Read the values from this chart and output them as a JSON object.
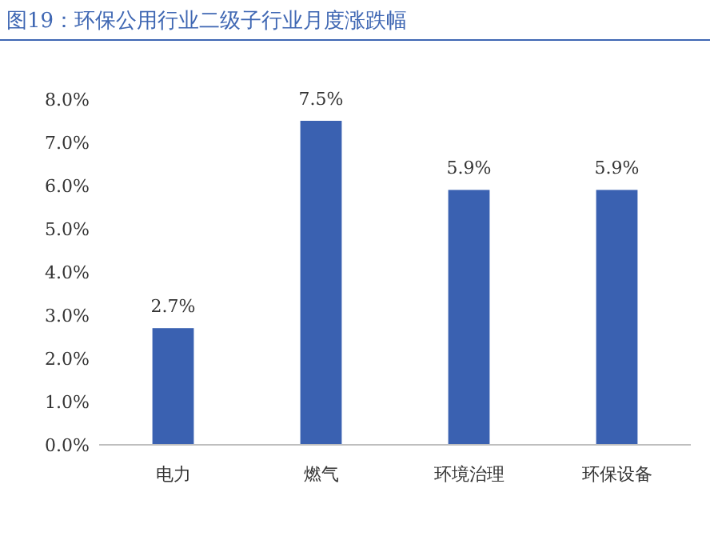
{
  "chart_data": {
    "type": "bar",
    "title": "图19：环保公用行业二级子行业月度涨跌幅",
    "categories": [
      "电力",
      "燃气",
      "环境治理",
      "环保设备"
    ],
    "values": [
      2.7,
      7.5,
      5.9,
      5.9
    ],
    "value_labels": [
      "2.7%",
      "7.5%",
      "5.9%",
      "5.9%"
    ],
    "color": "#3a61b1",
    "ylim": [
      0,
      8
    ],
    "yticks": [
      {
        "value": 0,
        "label": "0.0%"
      },
      {
        "value": 1,
        "label": "1.0%"
      },
      {
        "value": 2,
        "label": "2.0%"
      },
      {
        "value": 3,
        "label": "3.0%"
      },
      {
        "value": 4,
        "label": "4.0%"
      },
      {
        "value": 5,
        "label": "5.0%"
      },
      {
        "value": 6,
        "label": "6.0%"
      },
      {
        "value": 7,
        "label": "7.0%"
      },
      {
        "value": 8,
        "label": "8.0%"
      }
    ]
  }
}
